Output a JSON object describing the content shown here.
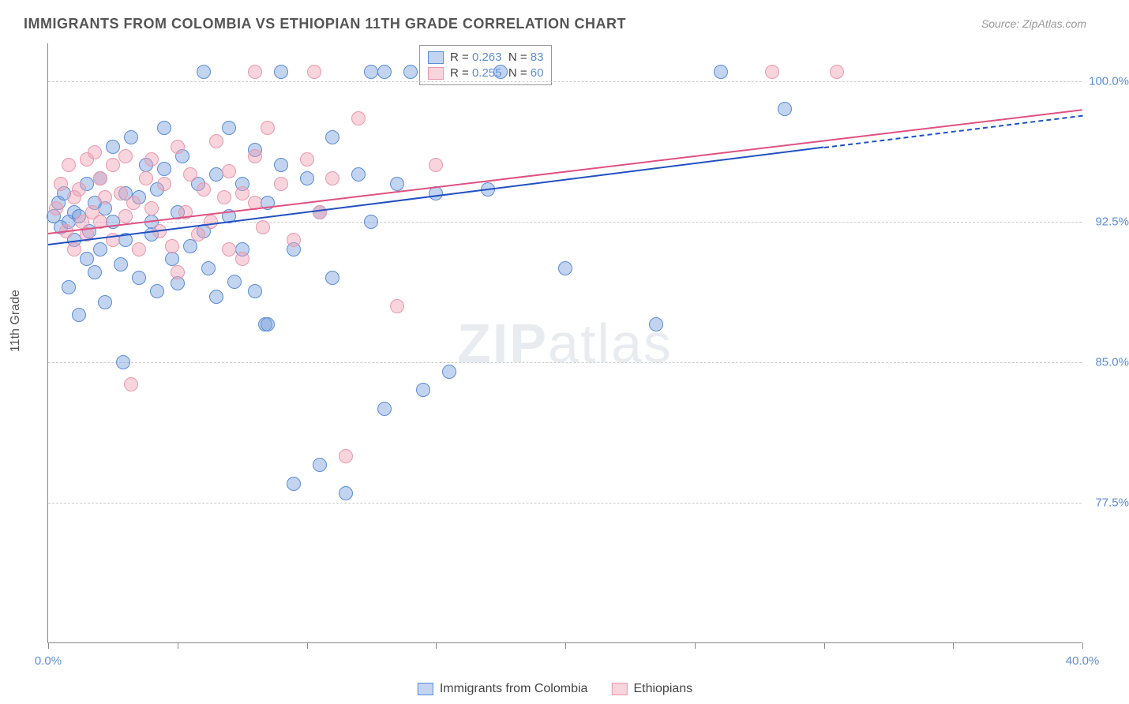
{
  "title": "IMMIGRANTS FROM COLOMBIA VS ETHIOPIAN 11TH GRADE CORRELATION CHART",
  "source_label": "Source:",
  "source_value": "ZipAtlas.com",
  "y_axis_label": "11th Grade",
  "watermark_bold": "ZIP",
  "watermark_rest": "atlas",
  "chart": {
    "type": "scatter",
    "xlim": [
      0,
      40
    ],
    "ylim": [
      70,
      102
    ],
    "x_ticks": [
      0,
      5,
      10,
      15,
      20,
      25,
      30,
      35,
      40
    ],
    "x_tick_labels": {
      "0": "0.0%",
      "40": "40.0%"
    },
    "y_grid": [
      77.5,
      85.0,
      92.5,
      100.0
    ],
    "y_tick_labels": [
      "77.5%",
      "85.0%",
      "92.5%",
      "100.0%"
    ],
    "background_color": "#ffffff",
    "grid_color": "#cccccc",
    "axis_color": "#888888",
    "label_color": "#5b8dd6",
    "series": [
      {
        "name": "Immigrants from Colombia",
        "color_fill": "rgba(120,160,220,0.45)",
        "color_stroke": "#5b8dd6",
        "trend_color": "#2050c0",
        "R": "0.263",
        "N": "83",
        "trend": {
          "x1": 0,
          "y1": 91.3,
          "x2": 30,
          "y2": 96.5,
          "dash_to_x": 40,
          "dash_to_y": 98.2
        },
        "marker_radius": 9,
        "points": [
          [
            0.2,
            92.8
          ],
          [
            0.4,
            93.5
          ],
          [
            0.5,
            92.2
          ],
          [
            0.6,
            94.0
          ],
          [
            0.8,
            92.5
          ],
          [
            0.8,
            89.0
          ],
          [
            1.0,
            93.0
          ],
          [
            1.0,
            91.5
          ],
          [
            1.2,
            92.8
          ],
          [
            1.2,
            87.5
          ],
          [
            1.5,
            94.5
          ],
          [
            1.5,
            90.5
          ],
          [
            1.6,
            92.0
          ],
          [
            1.8,
            93.5
          ],
          [
            1.8,
            89.8
          ],
          [
            2.0,
            94.8
          ],
          [
            2.0,
            91.0
          ],
          [
            2.2,
            93.2
          ],
          [
            2.2,
            88.2
          ],
          [
            2.5,
            96.5
          ],
          [
            2.5,
            92.5
          ],
          [
            2.8,
            90.2
          ],
          [
            2.9,
            85.0
          ],
          [
            3.0,
            94.0
          ],
          [
            3.0,
            91.5
          ],
          [
            3.2,
            97.0
          ],
          [
            3.5,
            93.8
          ],
          [
            3.5,
            89.5
          ],
          [
            3.8,
            95.5
          ],
          [
            4.0,
            91.8
          ],
          [
            4.0,
            92.5
          ],
          [
            4.2,
            94.2
          ],
          [
            4.2,
            88.8
          ],
          [
            4.5,
            95.3
          ],
          [
            4.5,
            97.5
          ],
          [
            4.8,
            90.5
          ],
          [
            5.0,
            93.0
          ],
          [
            5.0,
            89.2
          ],
          [
            5.2,
            96.0
          ],
          [
            5.5,
            91.2
          ],
          [
            5.8,
            94.5
          ],
          [
            6.0,
            100.5
          ],
          [
            6.0,
            92.0
          ],
          [
            6.2,
            90.0
          ],
          [
            6.5,
            95.0
          ],
          [
            6.5,
            88.5
          ],
          [
            7.0,
            97.5
          ],
          [
            7.0,
            92.8
          ],
          [
            7.2,
            89.3
          ],
          [
            7.5,
            94.5
          ],
          [
            7.5,
            91.0
          ],
          [
            8.0,
            96.3
          ],
          [
            8.0,
            88.8
          ],
          [
            8.4,
            87.0
          ],
          [
            8.5,
            93.5
          ],
          [
            8.5,
            87.0
          ],
          [
            9.0,
            95.5
          ],
          [
            9.0,
            100.5
          ],
          [
            9.5,
            91.0
          ],
          [
            9.5,
            78.5
          ],
          [
            10.0,
            94.8
          ],
          [
            10.5,
            79.5
          ],
          [
            10.5,
            93.0
          ],
          [
            11.0,
            97.0
          ],
          [
            11.0,
            89.5
          ],
          [
            11.5,
            78.0
          ],
          [
            12.0,
            95.0
          ],
          [
            12.5,
            92.5
          ],
          [
            12.5,
            100.5
          ],
          [
            13.0,
            82.5
          ],
          [
            13.0,
            100.5
          ],
          [
            13.5,
            94.5
          ],
          [
            14.0,
            100.5
          ],
          [
            14.5,
            83.5
          ],
          [
            15.0,
            94.0
          ],
          [
            15.5,
            84.5
          ],
          [
            17.0,
            94.2
          ],
          [
            17.5,
            100.5
          ],
          [
            20.0,
            90.0
          ],
          [
            23.5,
            87.0
          ],
          [
            26.0,
            100.5
          ],
          [
            28.5,
            98.5
          ]
        ]
      },
      {
        "name": "Ethiopians",
        "color_fill": "rgba(240,160,180,0.45)",
        "color_stroke": "#e899ac",
        "trend_color": "#e05080",
        "R": "0.255",
        "N": "60",
        "trend": {
          "x1": 0,
          "y1": 91.9,
          "x2": 40,
          "y2": 98.5
        },
        "marker_radius": 9,
        "points": [
          [
            0.3,
            93.2
          ],
          [
            0.5,
            94.5
          ],
          [
            0.7,
            92.0
          ],
          [
            0.8,
            95.5
          ],
          [
            1.0,
            93.8
          ],
          [
            1.0,
            91.0
          ],
          [
            1.2,
            94.2
          ],
          [
            1.3,
            92.5
          ],
          [
            1.5,
            95.8
          ],
          [
            1.5,
            91.8
          ],
          [
            1.7,
            93.0
          ],
          [
            1.8,
            96.2
          ],
          [
            2.0,
            92.5
          ],
          [
            2.0,
            94.8
          ],
          [
            2.2,
            93.8
          ],
          [
            2.5,
            91.5
          ],
          [
            2.5,
            95.5
          ],
          [
            2.8,
            94.0
          ],
          [
            3.0,
            92.8
          ],
          [
            3.0,
            96.0
          ],
          [
            3.2,
            83.8
          ],
          [
            3.3,
            93.5
          ],
          [
            3.5,
            91.0
          ],
          [
            3.8,
            94.8
          ],
          [
            4.0,
            93.2
          ],
          [
            4.0,
            95.8
          ],
          [
            4.3,
            92.0
          ],
          [
            4.5,
            94.5
          ],
          [
            4.8,
            91.2
          ],
          [
            5.0,
            96.5
          ],
          [
            5.0,
            89.8
          ],
          [
            5.3,
            93.0
          ],
          [
            5.5,
            95.0
          ],
          [
            5.8,
            91.8
          ],
          [
            6.0,
            94.2
          ],
          [
            6.3,
            92.5
          ],
          [
            6.5,
            96.8
          ],
          [
            6.8,
            93.8
          ],
          [
            7.0,
            91.0
          ],
          [
            7.0,
            95.2
          ],
          [
            7.5,
            94.0
          ],
          [
            7.5,
            90.5
          ],
          [
            8.0,
            93.5
          ],
          [
            8.0,
            96.0
          ],
          [
            8.0,
            100.5
          ],
          [
            8.3,
            92.2
          ],
          [
            8.5,
            97.5
          ],
          [
            9.0,
            94.5
          ],
          [
            9.5,
            91.5
          ],
          [
            10.0,
            95.8
          ],
          [
            10.3,
            100.5
          ],
          [
            10.5,
            93.0
          ],
          [
            11.0,
            94.8
          ],
          [
            11.5,
            80.0
          ],
          [
            12.0,
            98.0
          ],
          [
            13.5,
            88.0
          ],
          [
            15.0,
            95.5
          ],
          [
            28.0,
            100.5
          ],
          [
            30.5,
            100.5
          ]
        ]
      }
    ]
  },
  "legend_top": {
    "R_label": "R =",
    "N_label": "N ="
  },
  "legend_bottom": {
    "series1_label": "Immigrants from Colombia",
    "series2_label": "Ethiopians"
  }
}
